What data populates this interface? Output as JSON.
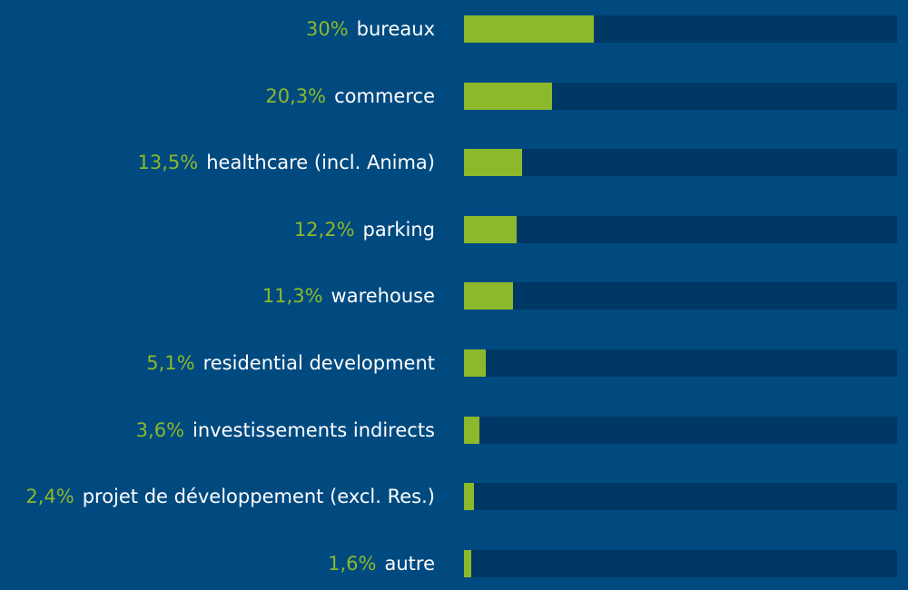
{
  "chart_data": {
    "type": "bar",
    "orientation": "horizontal",
    "title": "",
    "xlabel": "",
    "ylabel": "",
    "xlim": [
      0,
      100
    ],
    "grid": false,
    "categories": [
      "bureaux",
      "commerce",
      "healthcare (incl. Anima)",
      "parking",
      "warehouse",
      "residential development",
      "investissements indirects",
      "projet de développement (excl. Res.)",
      "autre"
    ],
    "value_labels": [
      "30%",
      "20,3%",
      "13,5%",
      "12,2%",
      "11,3%",
      "5,1%",
      "3,6%",
      "2,4%",
      "1,6%"
    ],
    "values": [
      30,
      20.3,
      13.5,
      12.2,
      11.3,
      5.1,
      3.6,
      2.4,
      1.6
    ]
  },
  "colors": {
    "background": "#004a80",
    "track": "#003865",
    "bar": "#8cb82b",
    "percent_text": "#8cb82b",
    "label_text": "#ffffff"
  }
}
